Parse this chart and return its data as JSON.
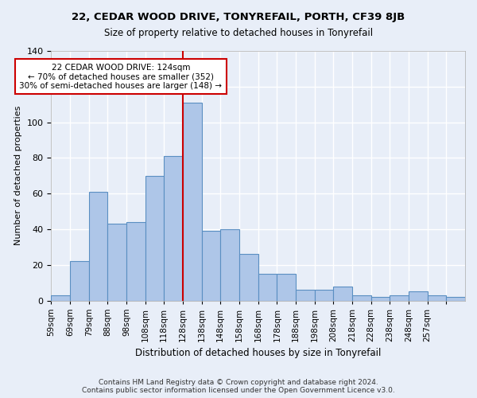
{
  "title": "22, CEDAR WOOD DRIVE, TONYREFAIL, PORTH, CF39 8JB",
  "subtitle": "Size of property relative to detached houses in Tonyrefail",
  "xlabel": "Distribution of detached houses by size in Tonyrefail",
  "ylabel": "Number of detached properties",
  "bar_values": [
    3,
    22,
    61,
    43,
    44,
    70,
    81,
    111,
    39,
    40,
    26,
    15,
    15,
    6,
    6,
    8,
    3,
    2,
    3,
    5,
    3,
    2
  ],
  "bar_labels": [
    "59sqm",
    "69sqm",
    "79sqm",
    "88sqm",
    "98sqm",
    "108sqm",
    "118sqm",
    "128sqm",
    "138sqm",
    "148sqm",
    "158sqm",
    "168sqm",
    "178sqm",
    "188sqm",
    "198sqm",
    "208sqm",
    "218sqm",
    "228sqm",
    "238sqm",
    "248sqm",
    "257sqm",
    ""
  ],
  "bar_color": "#aec6e8",
  "bar_edge_color": "#5a8fc2",
  "vline_x": 124,
  "vline_color": "#cc0000",
  "annotation_text": "22 CEDAR WOOD DRIVE: 124sqm\n← 70% of detached houses are smaller (352)\n30% of semi-detached houses are larger (148) →",
  "annotation_box_color": "#ffffff",
  "annotation_box_edge_color": "#cc0000",
  "bg_color": "#e8eef8",
  "grid_color": "#ffffff",
  "ylim": [
    0,
    140
  ],
  "footer": "Contains HM Land Registry data © Crown copyright and database right 2024.\nContains public sector information licensed under the Open Government Licence v3.0."
}
